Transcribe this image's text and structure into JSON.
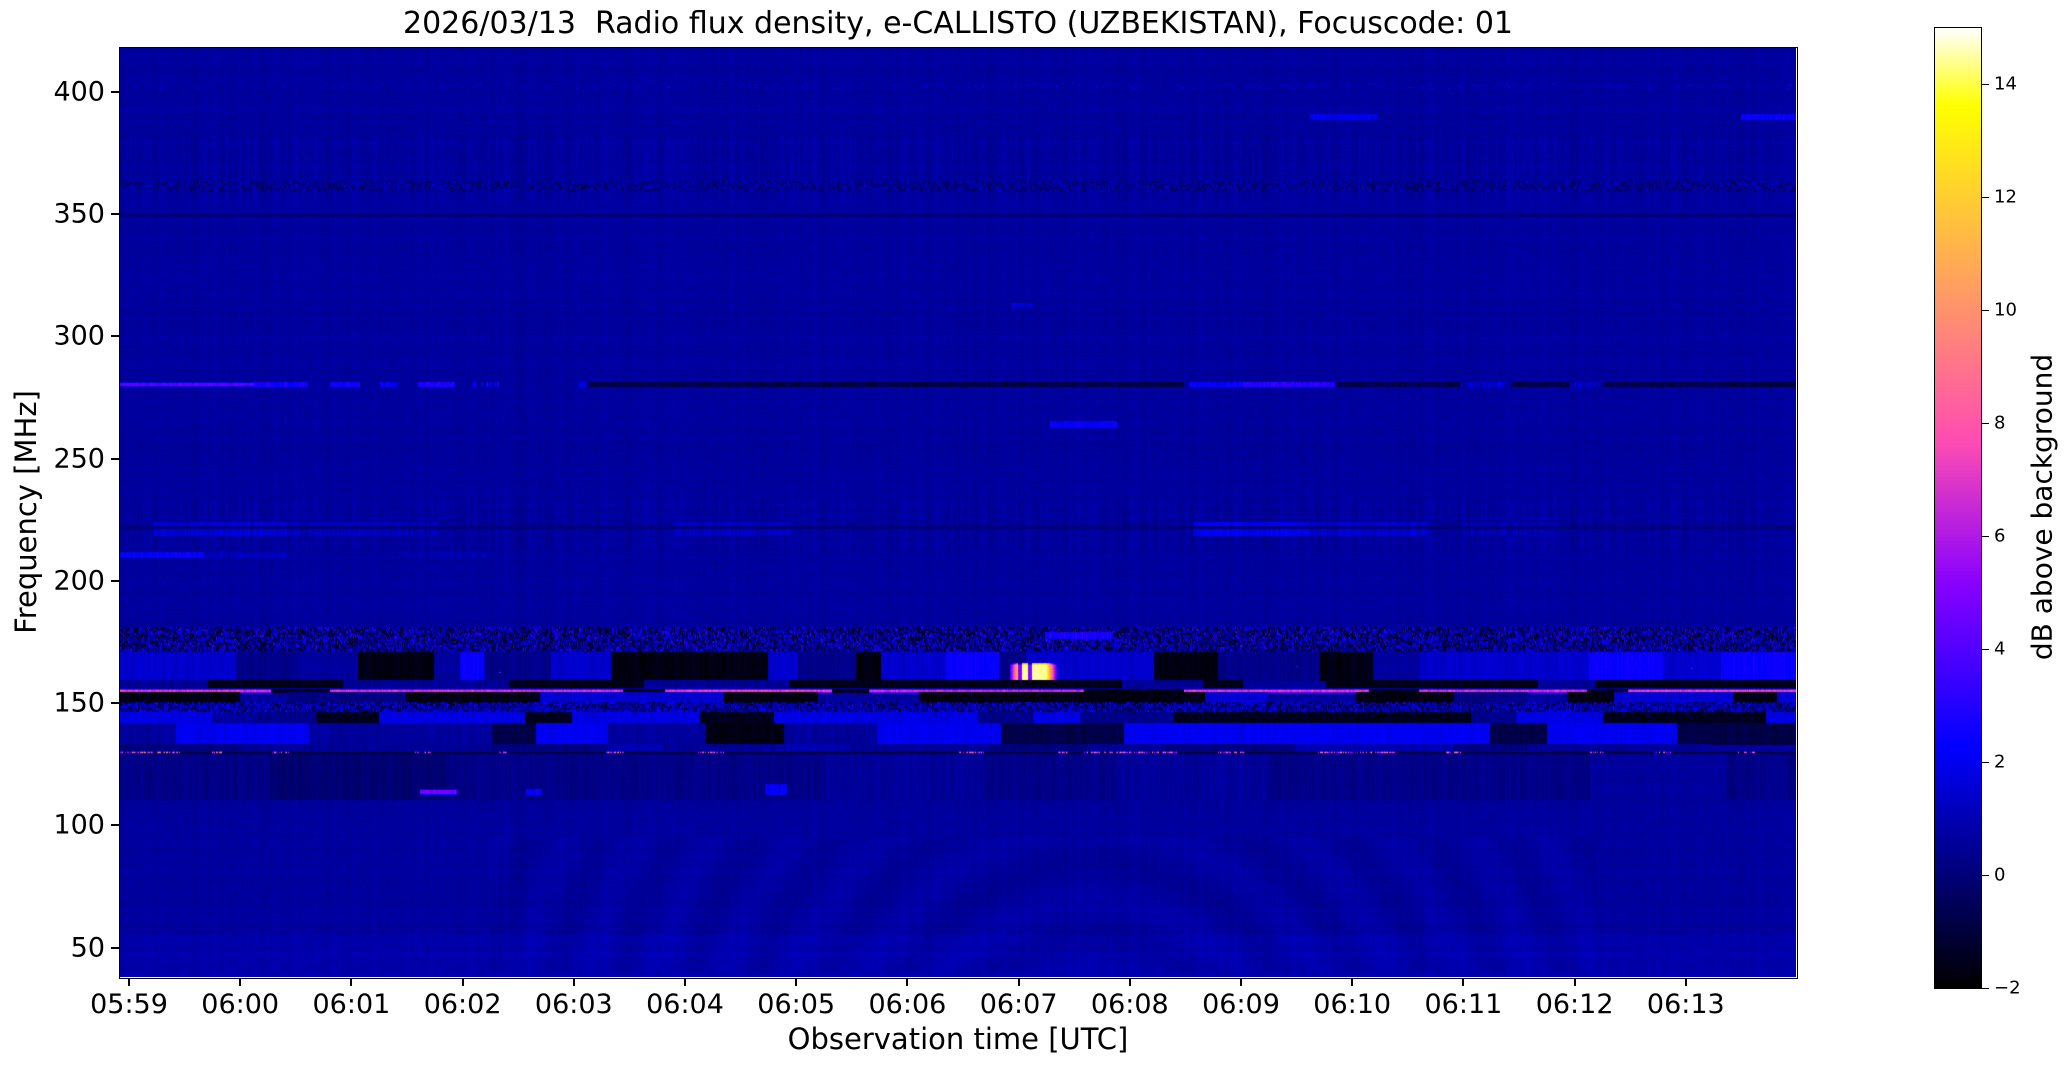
{
  "chart_data": {
    "type": "heatmap",
    "subtype": "radio-spectrogram",
    "title": "2026/03/13  Radio flux density, e-CALLISTO (UZBEKISTAN), Focuscode: 01",
    "xlabel": "Observation time [UTC]",
    "ylabel": "Frequency [MHz]",
    "x_tick_labels": [
      "05:59",
      "06:00",
      "06:01",
      "06:02",
      "06:03",
      "06:04",
      "06:05",
      "06:06",
      "06:07",
      "06:08",
      "06:09",
      "06:10",
      "06:11",
      "06:12",
      "06:13"
    ],
    "y_tick_values": [
      400,
      350,
      300,
      250,
      200,
      150,
      100,
      50
    ],
    "ylim": [
      38,
      418
    ],
    "grid": false,
    "colorbar": {
      "label": "dB above background",
      "tick_values": [
        14,
        12,
        10,
        8,
        6,
        4,
        2,
        0,
        -2
      ],
      "vmin": -2,
      "vmax": 15,
      "colormap": "gnuplot2"
    },
    "background_level_db": 0.62,
    "bands": [
      {
        "name": "dot-row-403MHz",
        "f0": 401.5,
        "f1": 403.5,
        "type": "dots",
        "p": 0.14,
        "pDark": 0.1,
        "v": [
          1.2,
          2.8
        ],
        "right_bias": true
      },
      {
        "name": "stripe-texture-370MHz",
        "f0": 356,
        "f1": 382,
        "type": "stripes",
        "amp": 0.5
      },
      {
        "name": "speckle-362MHz",
        "f0": 360.5,
        "f1": 363.5,
        "type": "speckle",
        "pDark": 0.28,
        "pBright": 0.1,
        "vDark": -0.6,
        "vBright": [
          1.0,
          2.2
        ]
      },
      {
        "name": "dark-line-350MHz",
        "f0": 349.4,
        "f1": 350.6,
        "type": "uniform",
        "v": 0.12
      },
      {
        "name": "dash-390MHz",
        "f0": 389,
        "f1": 391.2,
        "type": "segments",
        "segs": [
          [
            0.71,
            0.75,
            2.0
          ],
          [
            0.967,
            1.0,
            2.3
          ]
        ]
      },
      {
        "name": "line-280MHz",
        "f0": 279.6,
        "f1": 281.4,
        "type": "segments",
        "jitter": 1.0,
        "segs": [
          [
            0.0,
            0.08,
            4.2
          ],
          [
            0.08,
            0.112,
            2.6
          ],
          [
            0.125,
            0.143,
            2.4
          ],
          [
            0.155,
            0.165,
            2.2
          ],
          [
            0.178,
            0.2,
            2.8
          ],
          [
            0.21,
            0.228,
            2.6,
            "dots"
          ],
          [
            0.273,
            0.278,
            1.8
          ],
          [
            0.28,
            0.635,
            -0.85
          ],
          [
            0.638,
            0.67,
            2.4
          ],
          [
            0.67,
            0.725,
            3.1
          ],
          [
            0.725,
            0.8,
            -0.7
          ],
          [
            0.8,
            0.826,
            2.0,
            "dots"
          ],
          [
            0.83,
            0.865,
            -0.8
          ],
          [
            0.865,
            0.885,
            1.7,
            "dots"
          ],
          [
            0.885,
            0.957,
            -0.7
          ],
          [
            0.957,
            1.0,
            -1.0
          ]
        ]
      },
      {
        "name": "dot-313MHz",
        "f0": 312.2,
        "f1": 313.8,
        "type": "segments",
        "segs": [
          [
            0.532,
            0.545,
            1.6
          ]
        ]
      },
      {
        "name": "dash-264MHz",
        "f0": 263,
        "f1": 265.5,
        "type": "segments",
        "segs": [
          [
            0.555,
            0.595,
            2.2
          ]
        ]
      },
      {
        "name": "stripe-texture-222MHz",
        "f0": 213,
        "f1": 233,
        "type": "stripes",
        "amp": 0.55
      },
      {
        "name": "patches-221MHz",
        "f0": 219,
        "f1": 224,
        "type": "segments",
        "jitter": 1.0,
        "segs": [
          [
            0.02,
            0.1,
            1.6
          ],
          [
            0.1,
            0.19,
            1.1
          ],
          [
            0.33,
            0.4,
            1.2
          ],
          [
            0.64,
            0.71,
            2.0
          ],
          [
            0.71,
            0.78,
            1.4
          ],
          [
            0.8,
            0.86,
            1.0
          ]
        ]
      },
      {
        "name": "dark-line-222MHz",
        "f0": 221.6,
        "f1": 222.4,
        "type": "uniform",
        "v": 0.0
      },
      {
        "name": "line-211MHz",
        "f0": 209.8,
        "f1": 211.8,
        "type": "segments",
        "segs": [
          [
            0.0,
            0.05,
            2.3
          ],
          [
            0.05,
            0.1,
            1.2
          ],
          [
            0.17,
            0.22,
            0.9
          ]
        ]
      },
      {
        "name": "speckle-band-177MHz",
        "f0": 172,
        "f1": 181,
        "type": "speckle",
        "pDark": 0.35,
        "pBright": 0.25,
        "vDark": -1.5,
        "vBright": [
          1.2,
          3.5
        ]
      },
      {
        "name": "dash-178MHz",
        "f0": 176.5,
        "f1": 179,
        "type": "segments",
        "segs": [
          [
            0.552,
            0.592,
            2.8
          ]
        ]
      },
      {
        "name": "blocky-band-165MHz",
        "f0": 159.5,
        "f1": 171,
        "type": "blocks",
        "minw": 0.012,
        "maxw": 0.05,
        "states": [
          [
            2.4,
            0.3
          ],
          [
            1.4,
            0.18
          ],
          [
            -1.7,
            0.32
          ],
          [
            0.3,
            0.2
          ]
        ]
      },
      {
        "name": "white-burst-0607UT-162MHz",
        "f0": 157.5,
        "f1": 166.5,
        "type": "burst",
        "x0": 0.531,
        "x1": 0.559,
        "v": 14.5,
        "gaps": [
          [
            0.5355,
            0.538
          ],
          [
            0.5415,
            0.544
          ]
        ]
      },
      {
        "name": "magenta-dots-164MHz",
        "f0": 162,
        "f1": 166,
        "type": "dots",
        "p": 0.004,
        "pDark": 0,
        "v": [
          5.5,
          7.0
        ]
      },
      {
        "name": "black-band-158MHz",
        "f0": 156.6,
        "f1": 159.5,
        "type": "blocks",
        "minw": 0.02,
        "maxw": 0.07,
        "states": [
          [
            -1.6,
            0.7
          ],
          [
            0.5,
            0.3
          ]
        ]
      },
      {
        "name": "magenta-line-155MHz",
        "f0": 154.5,
        "f1": 155.9,
        "type": "segments",
        "jitter": 1.4,
        "segs": [
          [
            0.0,
            0.09,
            7.0
          ],
          [
            0.09,
            0.125,
            -1.5
          ],
          [
            0.125,
            0.3,
            6.8
          ],
          [
            0.3,
            0.325,
            -1.6
          ],
          [
            0.325,
            0.425,
            7.2
          ],
          [
            0.425,
            0.447,
            -1.5
          ],
          [
            0.447,
            0.575,
            6.6
          ],
          [
            0.575,
            0.635,
            -1.7
          ],
          [
            0.635,
            0.745,
            7.0
          ],
          [
            0.745,
            0.775,
            -1.6
          ],
          [
            0.775,
            0.875,
            6.8
          ],
          [
            0.875,
            0.9,
            -1.4
          ],
          [
            0.9,
            1.0,
            7.2
          ]
        ]
      },
      {
        "name": "black-band-152MHz",
        "f0": 150.5,
        "f1": 154.5,
        "type": "blocks",
        "minw": 0.015,
        "maxw": 0.06,
        "states": [
          [
            -1.7,
            0.55
          ],
          [
            1.5,
            0.27
          ],
          [
            0.2,
            0.18
          ]
        ]
      },
      {
        "name": "speckle-149MHz",
        "f0": 146.5,
        "f1": 150.5,
        "type": "speckle",
        "pDark": 0.28,
        "pBright": 0.35,
        "vDark": -1.2,
        "vBright": [
          1.0,
          2.8
        ]
      },
      {
        "name": "blocky-144MHz",
        "f0": 142,
        "f1": 146.5,
        "type": "blocks",
        "minw": 0.02,
        "maxw": 0.06,
        "states": [
          [
            -1.5,
            0.4
          ],
          [
            1.8,
            0.3
          ],
          [
            0.3,
            0.3
          ]
        ]
      },
      {
        "name": "blocky-138MHz",
        "f0": 133.5,
        "f1": 142,
        "type": "blocks",
        "minw": 0.025,
        "maxw": 0.08,
        "states": [
          [
            -0.8,
            0.3
          ],
          [
            2.0,
            0.35
          ],
          [
            -1.7,
            0.2
          ],
          [
            0.6,
            0.15
          ]
        ]
      },
      {
        "name": "gray-band-132MHz",
        "f0": 130.8,
        "f1": 133.5,
        "type": "blocks",
        "minw": 0.03,
        "maxw": 0.1,
        "states": [
          [
            0.5,
            0.5
          ],
          [
            0.9,
            0.3
          ],
          [
            0.1,
            0.2
          ]
        ]
      },
      {
        "name": "dotted-line-130MHz",
        "f0": 129.3,
        "f1": 130.8,
        "type": "dotline",
        "base": -1.2,
        "v": [
          5,
          11.5
        ],
        "clusters": [
          [
            0.0,
            0.035
          ],
          [
            0.055,
            0.06
          ],
          [
            0.09,
            0.1
          ],
          [
            0.175,
            0.185
          ],
          [
            0.225,
            0.232
          ],
          [
            0.29,
            0.3
          ],
          [
            0.345,
            0.36
          ],
          [
            0.5,
            0.515
          ],
          [
            0.555,
            0.565
          ],
          [
            0.575,
            0.63
          ],
          [
            0.655,
            0.67
          ],
          [
            0.715,
            0.76
          ],
          [
            0.79,
            0.8
          ],
          [
            0.875,
            0.885
          ],
          [
            0.915,
            0.925
          ],
          [
            0.965,
            0.975
          ]
        ]
      },
      {
        "name": "gray-band-120MHz",
        "f0": 111,
        "f1": 129.3,
        "type": "blocks",
        "minw": 0.04,
        "maxw": 0.12,
        "states": [
          [
            0.25,
            0.6
          ],
          [
            0.55,
            0.25
          ],
          [
            -0.1,
            0.15
          ]
        ]
      },
      {
        "name": "pink-dash-114MHz",
        "f0": 113,
        "f1": 115,
        "type": "segments",
        "segs": [
          [
            0.179,
            0.201,
            4.8
          ],
          [
            0.242,
            0.252,
            2.4
          ]
        ]
      },
      {
        "name": "dots-118MHz",
        "f0": 116,
        "f1": 121,
        "type": "dots",
        "p": 0.004,
        "pDark": 0,
        "v": [
          1.8,
          2.6
        ]
      },
      {
        "name": "blob-115MHz",
        "f0": 113,
        "f1": 117,
        "type": "segments",
        "segs": [
          [
            0.385,
            0.398,
            2.2
          ]
        ]
      },
      {
        "name": "bottom-brightening-45-55MHz",
        "f0": 38,
        "f1": 56,
        "type": "add",
        "v": 0.22
      },
      {
        "name": "interference-arcs-bottom",
        "f0": 40,
        "f1": 95,
        "type": "arcs",
        "cx": 0.58,
        "amp": 0.16
      }
    ]
  }
}
